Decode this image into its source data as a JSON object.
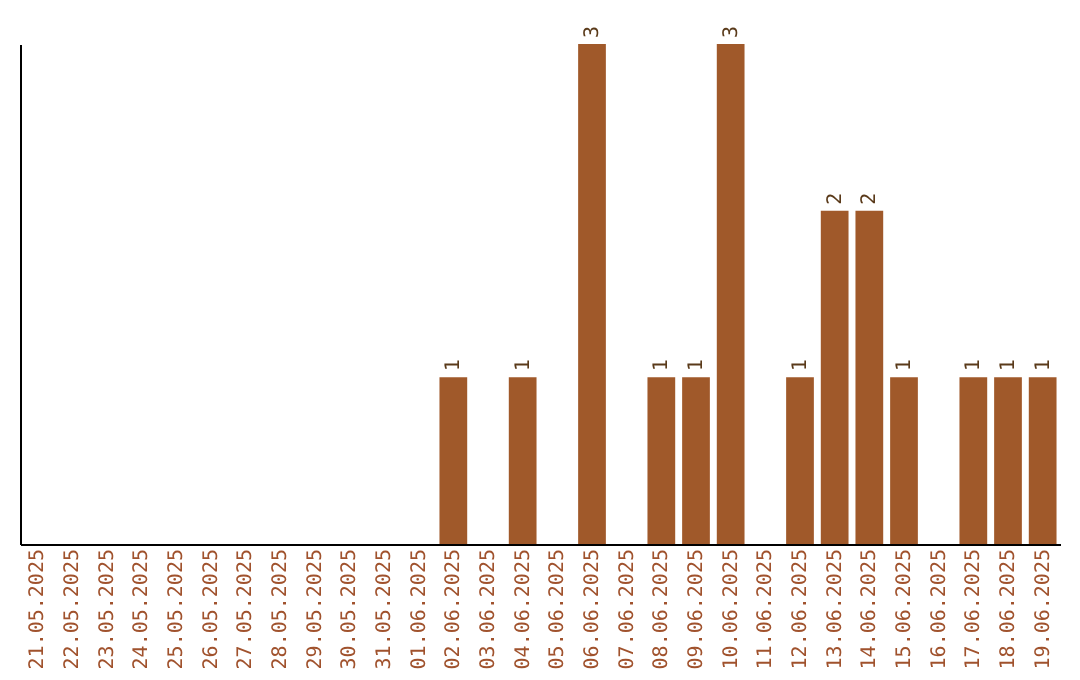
{
  "chart_data": {
    "type": "bar",
    "categories": [
      "21.05.2025",
      "22.05.2025",
      "23.05.2025",
      "24.05.2025",
      "25.05.2025",
      "26.05.2025",
      "27.05.2025",
      "28.05.2025",
      "29.05.2025",
      "30.05.2025",
      "31.05.2025",
      "01.06.2025",
      "02.06.2025",
      "03.06.2025",
      "04.06.2025",
      "05.06.2025",
      "06.06.2025",
      "07.06.2025",
      "08.06.2025",
      "09.06.2025",
      "10.06.2025",
      "11.06.2025",
      "12.06.2025",
      "13.06.2025",
      "14.06.2025",
      "15.06.2025",
      "16.06.2025",
      "17.06.2025",
      "18.06.2025",
      "19.06.2025"
    ],
    "series": [
      {
        "color": "#a0592a",
        "values": [
          null,
          null,
          null,
          null,
          null,
          null,
          null,
          null,
          null,
          null,
          null,
          null,
          1,
          null,
          1,
          null,
          3,
          null,
          1,
          1,
          3,
          null,
          1,
          2,
          2,
          1,
          null,
          1,
          1,
          1
        ]
      }
    ],
    "data_labels": true,
    "tick_labels": "x",
    "grid": false
  }
}
